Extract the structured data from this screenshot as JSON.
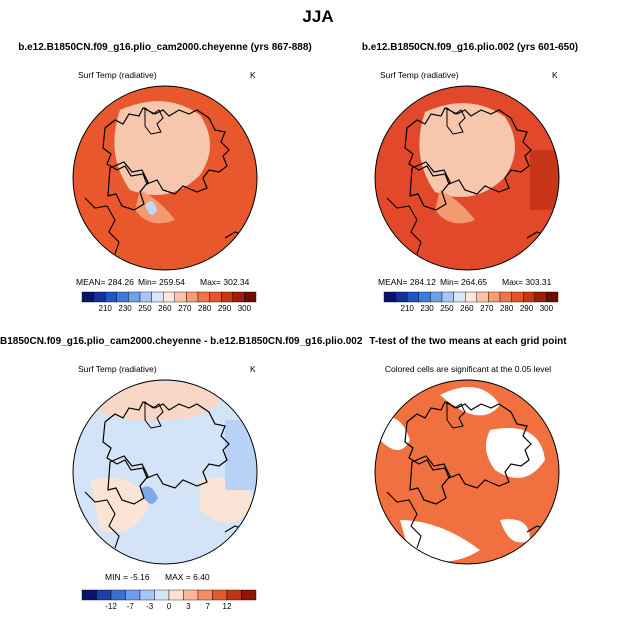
{
  "title": "JJA",
  "panels": [
    {
      "title": "b.e12.B1850CN.f09_g16.plio_cam2000.cheyenne (yrs 867-888)",
      "variable": "Surf Temp (radiative)",
      "unit": "K",
      "stats": [
        "MEAN= 284.26",
        "Min= 259.54",
        "Max= 302.34"
      ],
      "colorbar": [
        "210",
        "230",
        "250",
        "260",
        "270",
        "280",
        "290",
        "300"
      ]
    },
    {
      "title": "b.e12.B1850CN.f09_g16.plio.002 (yrs 601-650)",
      "variable": "Surf Temp (radiative)",
      "unit": "K",
      "stats": [
        "MEAN= 284.12",
        "Min= 264.65",
        "Max= 303.31"
      ],
      "colorbar": [
        "210",
        "230",
        "250",
        "260",
        "270",
        "280",
        "290",
        "300"
      ]
    },
    {
      "title": "B1850CN.f09_g16.plio_cam2000.cheyenne - b.e12.B1850CN.f09_g16.plio.002",
      "variable": "Surf Temp (radiative)",
      "unit": "K",
      "stats": [
        "MIN = -5.16",
        "MAX = 6.40"
      ],
      "colorbar": [
        "-12",
        "-7",
        "-3",
        "0",
        "3",
        "7",
        "12"
      ]
    },
    {
      "title": "T-test of the two means at each grid point",
      "note": "Colored cells are significant at the 0.05 level"
    }
  ]
}
